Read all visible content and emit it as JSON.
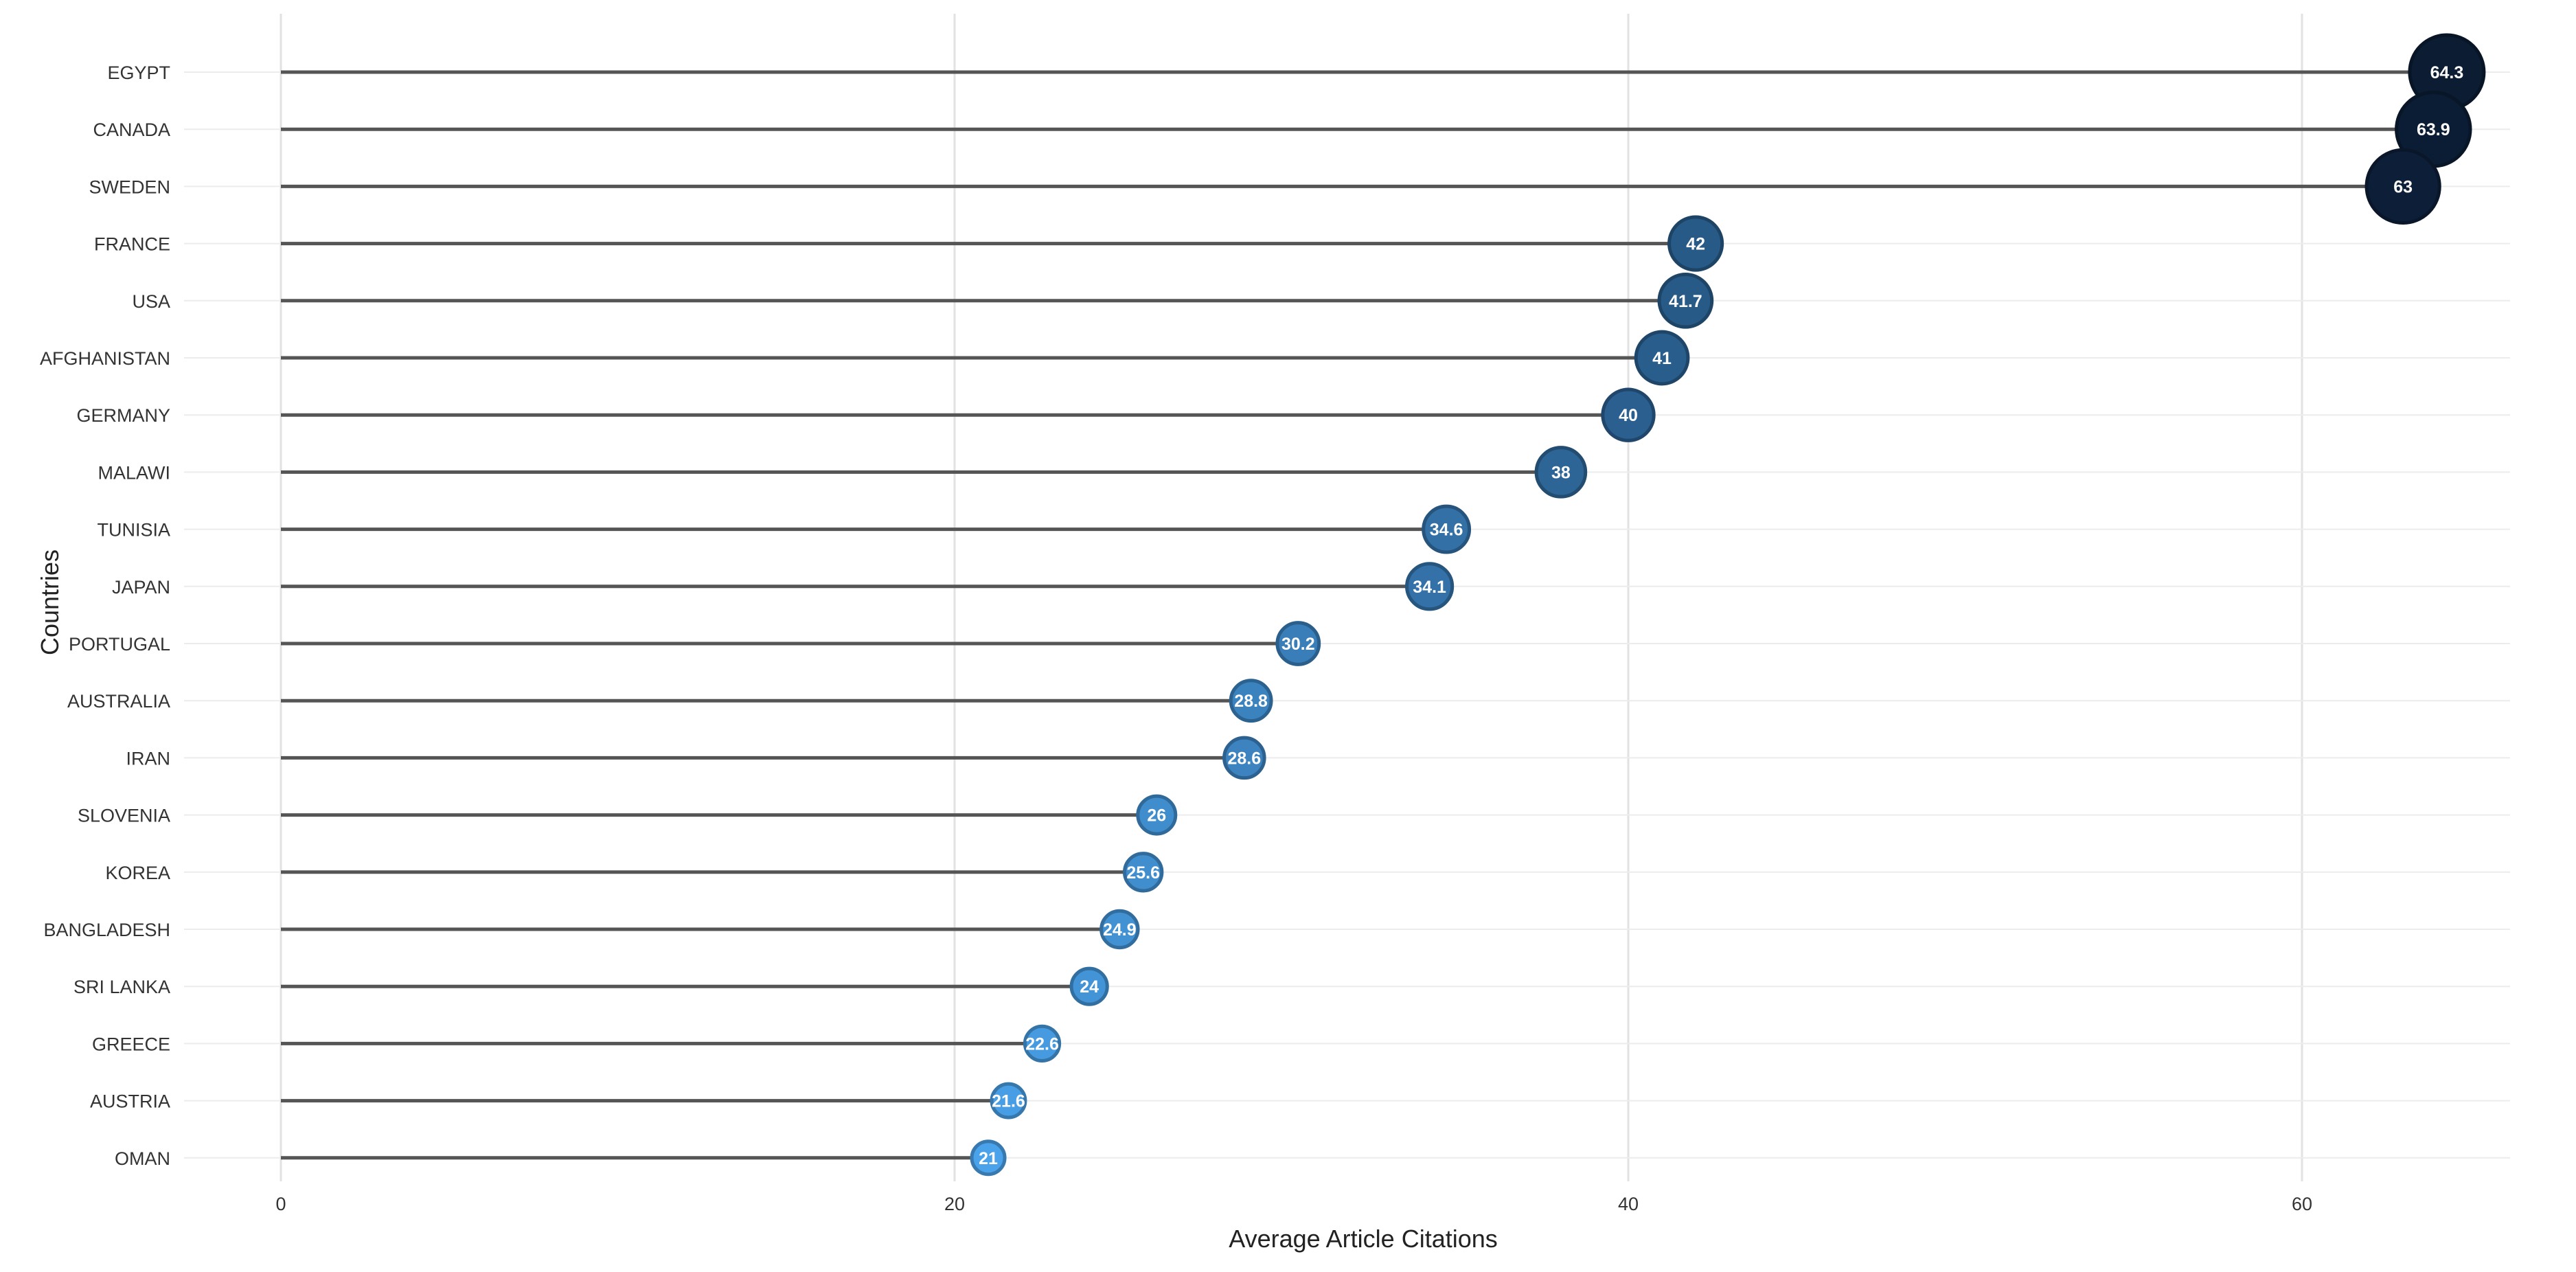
{
  "chart_data": {
    "type": "scatter",
    "subtype": "lollipop",
    "title": "",
    "xlabel": "Average Article Citations",
    "ylabel": "Countries",
    "xlim": [
      -3,
      67
    ],
    "xticks": [
      0,
      20,
      40,
      60
    ],
    "grid": true,
    "legend": "none",
    "categories": [
      "EGYPT",
      "CANADA",
      "SWEDEN",
      "FRANCE",
      "USA",
      "AFGHANISTAN",
      "GERMANY",
      "MALAWI",
      "TUNISIA",
      "JAPAN",
      "PORTUGAL",
      "AUSTRALIA",
      "IRAN",
      "SLOVENIA",
      "KOREA",
      "BANGLADESH",
      "SRI LANKA",
      "GREECE",
      "AUSTRIA",
      "OMAN"
    ],
    "values": [
      64.3,
      63.9,
      63,
      42,
      41.7,
      41,
      40,
      38,
      34.6,
      34.1,
      30.2,
      28.8,
      28.6,
      26,
      25.6,
      24.9,
      24,
      22.6,
      21.6,
      21
    ],
    "value_labels": [
      "64.3",
      "63.9",
      "63",
      "42",
      "41.7",
      "41",
      "40",
      "38",
      "34.6",
      "34.1",
      "30.2",
      "28.8",
      "28.6",
      "26",
      "25.6",
      "24.9",
      "24",
      "22.6",
      "21.6",
      "21"
    ],
    "color_scale": {
      "low": "#4aa2ea",
      "high": "#0b1c33"
    },
    "stem_color": "#555555"
  }
}
